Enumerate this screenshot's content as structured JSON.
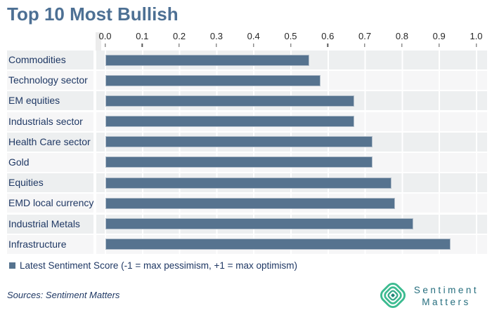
{
  "title": "Top 10 Most Bullish",
  "chart_data": {
    "type": "bar",
    "orientation": "horizontal",
    "title": "Top 10 Most Bullish",
    "categories": [
      "Commodities",
      "Technology sector",
      "EM equities",
      "Industrials sector",
      "Health Care sector",
      "Gold",
      "Equities",
      "EMD local currency",
      "Industrial Metals",
      "Infrastructure"
    ],
    "values": [
      0.55,
      0.58,
      0.67,
      0.67,
      0.72,
      0.72,
      0.77,
      0.78,
      0.83,
      0.93
    ],
    "series_name": "Latest Sentiment Score (-1 = max pessimism, +1 = max optimism)",
    "xlim": [
      0.0,
      1.0
    ],
    "xtick_labels": [
      "0.0",
      "0.1",
      "0.2",
      "0.3",
      "0.4",
      "0.5",
      "0.6",
      "0.7",
      "0.8",
      "0.9",
      "1.0"
    ],
    "grid": "vertical white gridlines every 0.1",
    "legend_position": "bottom-left",
    "sorted": "ascending top to bottom"
  },
  "legend": {
    "label": "Latest Sentiment Score (-1 = max pessimism, +1 = max optimism)"
  },
  "footer": {
    "sources": "Sources: Sentiment Matters"
  },
  "logo": {
    "icon": "concentric-diamond-icon",
    "line1": "Sentiment",
    "line2": "Matters"
  },
  "colors": {
    "title": "#4d7094",
    "bar_fill": "#56738f",
    "bar_border": "#b3bfcb",
    "category_text": "#1f3864",
    "axis_text": "#262626",
    "row_stripe_odd": "#edeff0",
    "row_stripe_even": "#f6f6f7",
    "legend_text": "#1f3864",
    "logo_green": "#3cbb90",
    "logo_text_teal": "#266e7e"
  }
}
